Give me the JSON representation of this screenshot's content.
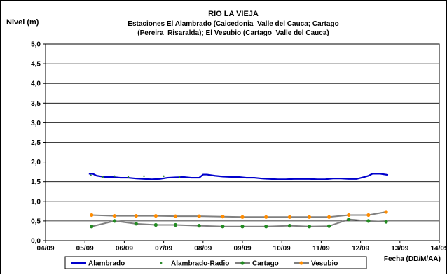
{
  "chart_data": {
    "type": "line",
    "title_lines": [
      "RIO LA VIEJA",
      "Estaciones El Alambrado (Caicedonia_Valle del Cauca; Cartago",
      "(Pereira_Risaralda);  El Vesubio (Cartago_Valle del Cauca)"
    ],
    "ylabel": "Nivel (m)",
    "xlabel": "Fecha (DD/M/AA)",
    "xlim": [
      0,
      10
    ],
    "ylim": [
      0,
      5
    ],
    "x_ticks": [
      "04/09",
      "05/09",
      "06/09",
      "07/09",
      "08/09",
      "09/09",
      "10/09",
      "11/09",
      "12/09",
      "13/09",
      "14/09"
    ],
    "y_ticks": [
      "0,0",
      "0,5",
      "1,0",
      "1,5",
      "2,0",
      "2,5",
      "3,0",
      "3,5",
      "4,0",
      "4,5",
      "5,0"
    ],
    "grid": "horizontal",
    "legend_position": "bottom",
    "series": [
      {
        "name": "Alambrado",
        "style": "line",
        "color": "#0000cc",
        "x": [
          1.1,
          1.2,
          1.3,
          1.5,
          1.7,
          1.9,
          2.1,
          2.3,
          2.5,
          2.7,
          2.9,
          3.1,
          3.3,
          3.5,
          3.7,
          3.9,
          4.0,
          4.1,
          4.3,
          4.5,
          4.7,
          4.9,
          5.1,
          5.3,
          5.5,
          5.7,
          5.9,
          6.1,
          6.3,
          6.5,
          6.7,
          6.9,
          7.1,
          7.3,
          7.5,
          7.7,
          7.9,
          8.1,
          8.2,
          8.3,
          8.5,
          8.7
        ],
        "values": [
          1.7,
          1.7,
          1.65,
          1.62,
          1.62,
          1.6,
          1.6,
          1.58,
          1.57,
          1.56,
          1.57,
          1.6,
          1.61,
          1.62,
          1.6,
          1.6,
          1.68,
          1.68,
          1.65,
          1.63,
          1.62,
          1.62,
          1.6,
          1.6,
          1.58,
          1.57,
          1.56,
          1.56,
          1.57,
          1.57,
          1.57,
          1.56,
          1.56,
          1.58,
          1.58,
          1.57,
          1.57,
          1.62,
          1.65,
          1.7,
          1.7,
          1.67
        ]
      },
      {
        "name": "Alambrado-Radio",
        "style": "points",
        "color": "#2e8b2e",
        "x": [
          1.15,
          1.45,
          1.75,
          2.1,
          2.5,
          3.0,
          3.4
        ],
        "values": [
          1.66,
          1.62,
          1.64,
          1.62,
          1.64,
          1.64,
          1.62
        ]
      },
      {
        "name": "Cartago",
        "style": "line-marker",
        "color": "#228b22",
        "line_color": "#808080",
        "x": [
          1.17,
          1.75,
          2.3,
          2.8,
          3.3,
          3.9,
          4.5,
          5.0,
          5.6,
          6.2,
          6.7,
          7.2,
          7.7,
          8.2,
          8.65
        ],
        "values": [
          0.36,
          0.5,
          0.43,
          0.4,
          0.4,
          0.38,
          0.36,
          0.36,
          0.36,
          0.38,
          0.36,
          0.37,
          0.54,
          0.5,
          0.48
        ]
      },
      {
        "name": "Vesubio",
        "style": "line-marker",
        "color": "#ff8c00",
        "line_color": "#808080",
        "x": [
          1.17,
          1.75,
          2.3,
          2.8,
          3.3,
          3.9,
          4.5,
          5.0,
          5.6,
          6.2,
          6.7,
          7.2,
          7.7,
          8.2,
          8.65
        ],
        "values": [
          0.65,
          0.63,
          0.63,
          0.63,
          0.62,
          0.62,
          0.61,
          0.6,
          0.6,
          0.6,
          0.6,
          0.6,
          0.65,
          0.65,
          0.73
        ]
      }
    ]
  }
}
